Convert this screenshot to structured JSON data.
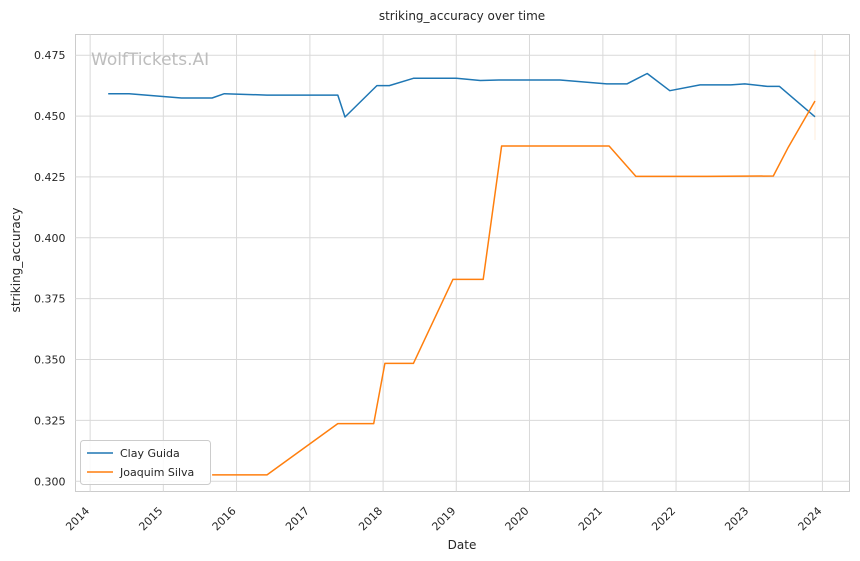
{
  "chart_data": {
    "type": "line",
    "title": "striking_accuracy over time",
    "xlabel": "Date",
    "ylabel": "striking_accuracy",
    "xlim": [
      "2013-10-20",
      "2024-05-15"
    ],
    "ylim": [
      0.2958,
      0.4835
    ],
    "x_ticks": [
      "2014",
      "2015",
      "2016",
      "2017",
      "2018",
      "2019",
      "2020",
      "2021",
      "2022",
      "2023",
      "2024"
    ],
    "y_ticks": [
      "0.300",
      "0.325",
      "0.350",
      "0.375",
      "0.400",
      "0.425",
      "0.450",
      "0.475"
    ],
    "grid": true,
    "legend_position": "lower-left",
    "watermark": "WolfTickets.AI",
    "series": [
      {
        "name": "Clay Guida",
        "color": "#1f77b4",
        "points": [
          [
            "2014-04-01",
            0.4592
          ],
          [
            "2014-07-15",
            0.4592
          ],
          [
            "2015-04-01",
            0.4574
          ],
          [
            "2015-09-01",
            0.4574
          ],
          [
            "2015-11-01",
            0.4592
          ],
          [
            "2016-06-01",
            0.4586
          ],
          [
            "2017-05-20",
            0.4586
          ],
          [
            "2017-06-25",
            0.4496
          ],
          [
            "2017-12-01",
            0.4625
          ],
          [
            "2018-02-01",
            0.4625
          ],
          [
            "2018-06-01",
            0.4655
          ],
          [
            "2019-01-01",
            0.4655
          ],
          [
            "2019-05-01",
            0.4646
          ],
          [
            "2019-08-01",
            0.4648
          ],
          [
            "2020-06-01",
            0.4648
          ],
          [
            "2021-01-20",
            0.4632
          ],
          [
            "2021-05-01",
            0.4632
          ],
          [
            "2021-08-10",
            0.4675
          ],
          [
            "2021-12-01",
            0.4604
          ],
          [
            "2022-05-01",
            0.4628
          ],
          [
            "2022-10-01",
            0.4628
          ],
          [
            "2022-12-10",
            0.4632
          ],
          [
            "2023-04-01",
            0.4622
          ],
          [
            "2023-06-01",
            0.4622
          ],
          [
            "2023-11-25",
            0.4497
          ]
        ]
      },
      {
        "name": "Joaquim Silva",
        "color": "#ff7f0e",
        "points": [
          [
            "2015-09-01",
            0.3026
          ],
          [
            "2016-06-01",
            0.3026
          ],
          [
            "2017-05-20",
            0.3237
          ],
          [
            "2017-11-15",
            0.3237
          ],
          [
            "2018-01-10",
            0.3484
          ],
          [
            "2018-06-01",
            0.3484
          ],
          [
            "2018-12-15",
            0.3829
          ],
          [
            "2019-05-15",
            0.3829
          ],
          [
            "2019-08-15",
            0.4377
          ],
          [
            "2021-02-01",
            0.4377
          ],
          [
            "2021-06-15",
            0.4252
          ],
          [
            "2022-06-01",
            0.4252
          ],
          [
            "2023-05-01",
            0.4254
          ],
          [
            "2023-07-15",
            0.4372
          ],
          [
            "2023-11-25",
            0.4562
          ]
        ]
      }
    ]
  }
}
